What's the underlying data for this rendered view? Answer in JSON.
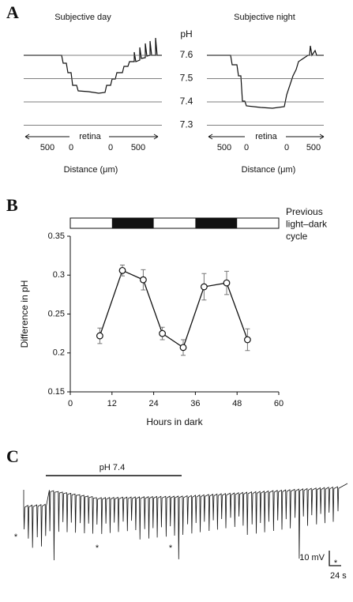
{
  "panel_labels": [
    "A",
    "B",
    "C"
  ],
  "panel_a": {
    "titles": [
      "Subjective day",
      "Subjective night"
    ],
    "y_label": "pH",
    "yticks": [
      7.6,
      7.5,
      7.4,
      7.3
    ],
    "x_tick_labels": [
      [
        "500",
        "0",
        "0",
        "500"
      ],
      [
        "500",
        "0",
        "0",
        "500"
      ]
    ],
    "x_region_label": [
      "retina",
      "retina"
    ],
    "x_label": [
      "Distance (μm)",
      "Distance (μm)"
    ]
  },
  "chart_data": {
    "type": "line",
    "x": [
      8.5,
      15,
      21,
      26.5,
      32.5,
      38.5,
      45,
      51
    ],
    "series": [
      {
        "color": "#111111",
        "values": [
          0.222,
          0.306,
          0.294,
          0.225,
          0.207,
          0.285,
          0.29,
          0.217
        ],
        "errors": [
          0.01,
          0.007,
          0.013,
          0.008,
          0.01,
          0.017,
          0.015,
          0.014
        ]
      }
    ],
    "xlim": [
      0,
      60
    ],
    "xticks": [
      0,
      12,
      24,
      36,
      48,
      60
    ],
    "ylim": [
      0.15,
      0.35
    ],
    "yticks": [
      0.15,
      0.2,
      0.25,
      0.3,
      0.35
    ],
    "x_label": "Hours in dark",
    "y_label": "Difference in pH",
    "light_dark": {
      "label": [
        "Previous",
        "light–dark",
        "cycle"
      ],
      "dark_periods": [
        [
          12,
          24
        ],
        [
          36,
          48
        ]
      ]
    }
  },
  "panel_c": {
    "bar_label": "pH 7.4",
    "markers": [
      "*",
      "*",
      "*",
      "*"
    ],
    "scale_labels": [
      "10 mV",
      "24 s"
    ]
  }
}
